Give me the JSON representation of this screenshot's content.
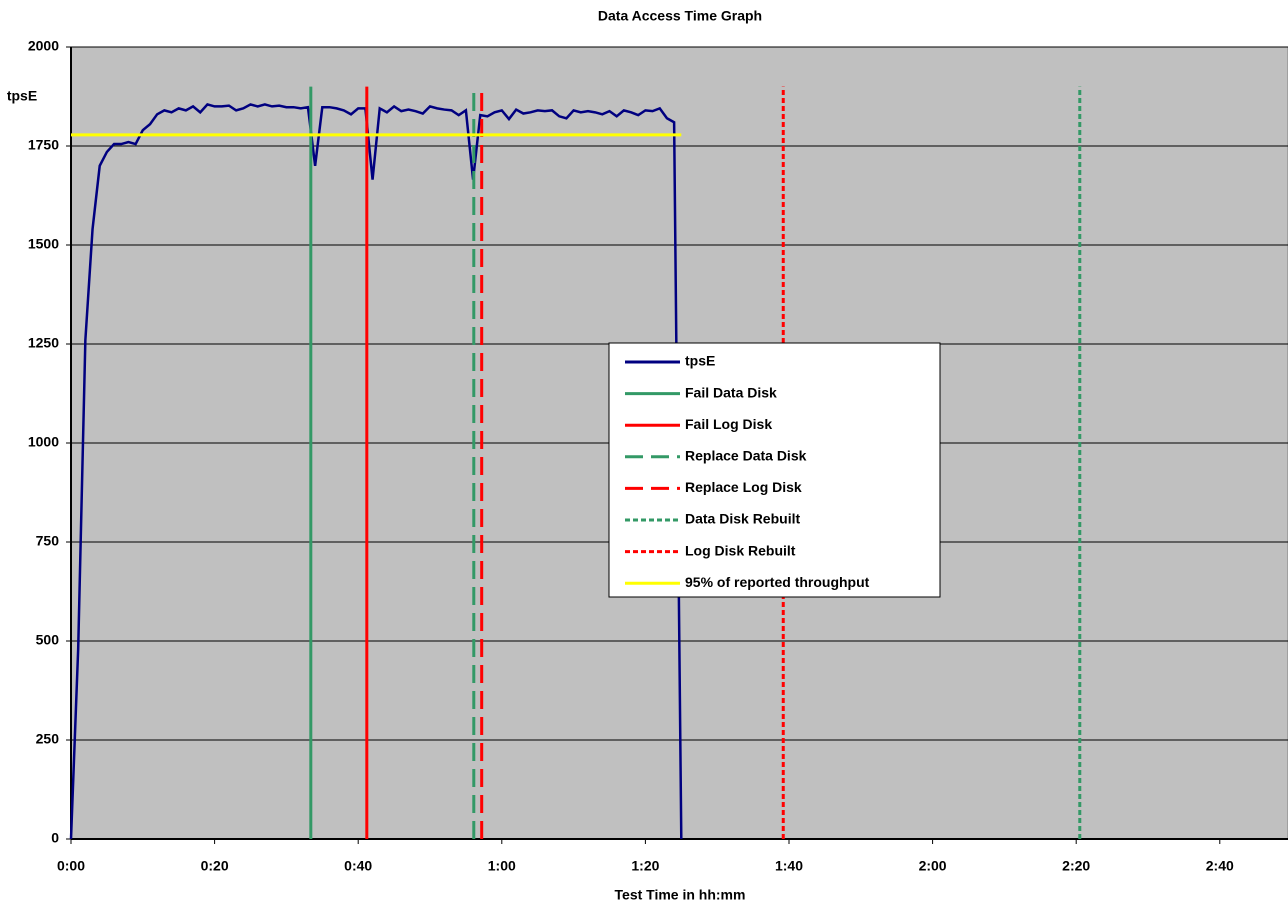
{
  "chart_data": {
    "type": "line",
    "title": "Data Access Time Graph",
    "xlabel": "Test Time in hh:mm",
    "ylabel": "tpsE",
    "xlim": [
      0,
      169.5
    ],
    "xticks": [
      {
        "value": 0,
        "label": "0:00"
      },
      {
        "value": 20,
        "label": "0:20"
      },
      {
        "value": 40,
        "label": "0:40"
      },
      {
        "value": 60,
        "label": "1:00"
      },
      {
        "value": 80,
        "label": "1:20"
      },
      {
        "value": 100,
        "label": "1:40"
      },
      {
        "value": 120,
        "label": "2:00"
      },
      {
        "value": 140,
        "label": "2:20"
      },
      {
        "value": 160,
        "label": "2:40"
      }
    ],
    "ylim": [
      0,
      2000
    ],
    "yticks": [
      0,
      250,
      500,
      750,
      1000,
      1250,
      1500,
      1750,
      2000
    ],
    "grid": true,
    "plot_background": "#c0c0c0",
    "series": [
      {
        "name": "tpsE",
        "color": "#000080",
        "dash": "solid",
        "x": [
          0,
          1,
          2,
          3,
          4,
          5,
          6,
          7,
          8,
          9,
          10,
          11,
          12,
          13,
          14,
          15,
          16,
          17,
          18,
          19,
          20,
          21,
          22,
          23,
          24,
          25,
          26,
          27,
          28,
          29,
          30,
          31,
          32,
          33,
          34,
          35,
          36,
          37,
          38,
          39,
          40,
          41,
          42,
          43,
          44,
          45,
          46,
          47,
          48,
          49,
          50,
          51,
          52,
          53,
          54,
          55,
          56,
          57,
          58,
          59,
          60,
          61,
          62,
          63,
          64,
          65,
          66,
          67,
          68,
          69,
          70,
          71,
          72,
          73,
          74,
          75,
          76,
          77,
          78,
          79,
          80,
          81,
          82,
          83,
          84,
          85
        ],
        "values": [
          0,
          480,
          1260,
          1540,
          1700,
          1735,
          1755,
          1755,
          1760,
          1755,
          1790,
          1805,
          1830,
          1840,
          1835,
          1845,
          1840,
          1850,
          1835,
          1855,
          1850,
          1850,
          1852,
          1840,
          1845,
          1855,
          1850,
          1855,
          1850,
          1852,
          1848,
          1848,
          1845,
          1848,
          1700,
          1848,
          1848,
          1845,
          1840,
          1830,
          1845,
          1845,
          1665,
          1845,
          1835,
          1850,
          1838,
          1842,
          1838,
          1832,
          1850,
          1845,
          1842,
          1840,
          1828,
          1840,
          1665,
          1828,
          1825,
          1835,
          1840,
          1818,
          1842,
          1832,
          1835,
          1840,
          1838,
          1840,
          1825,
          1820,
          1840,
          1835,
          1838,
          1835,
          1830,
          1838,
          1825,
          1840,
          1835,
          1828,
          1840,
          1838,
          1845,
          1820,
          1810,
          0
        ]
      },
      {
        "name": "Fail Data Disk",
        "color": "#339966",
        "dash": "solid",
        "x": [
          33.4,
          33.4
        ],
        "values": [
          0,
          1900
        ]
      },
      {
        "name": "Fail Log Disk",
        "color": "#ff0000",
        "dash": "solid",
        "x": [
          41.2,
          41.2
        ],
        "values": [
          0,
          1900
        ]
      },
      {
        "name": "Replace Data Disk",
        "color": "#339966",
        "dash": "dashed",
        "x": [
          56.1,
          56.1
        ],
        "values": [
          0,
          1900
        ]
      },
      {
        "name": "Replace Log Disk",
        "color": "#ff0000",
        "dash": "dashed",
        "x": [
          57.2,
          57.2
        ],
        "values": [
          0,
          1900
        ]
      },
      {
        "name": "Data Disk Rebuilt",
        "color": "#339966",
        "dash": "dotted",
        "x": [
          140.5,
          140.5
        ],
        "values": [
          0,
          1900
        ]
      },
      {
        "name": "Log Disk Rebuilt",
        "color": "#ff0000",
        "dash": "dotted",
        "x": [
          99.2,
          99.2
        ],
        "values": [
          0,
          1900
        ]
      },
      {
        "name": "95% of reported throughput",
        "color": "#ffff00",
        "dash": "solid",
        "x": [
          0,
          85
        ],
        "values": [
          1778,
          1778
        ]
      }
    ]
  }
}
